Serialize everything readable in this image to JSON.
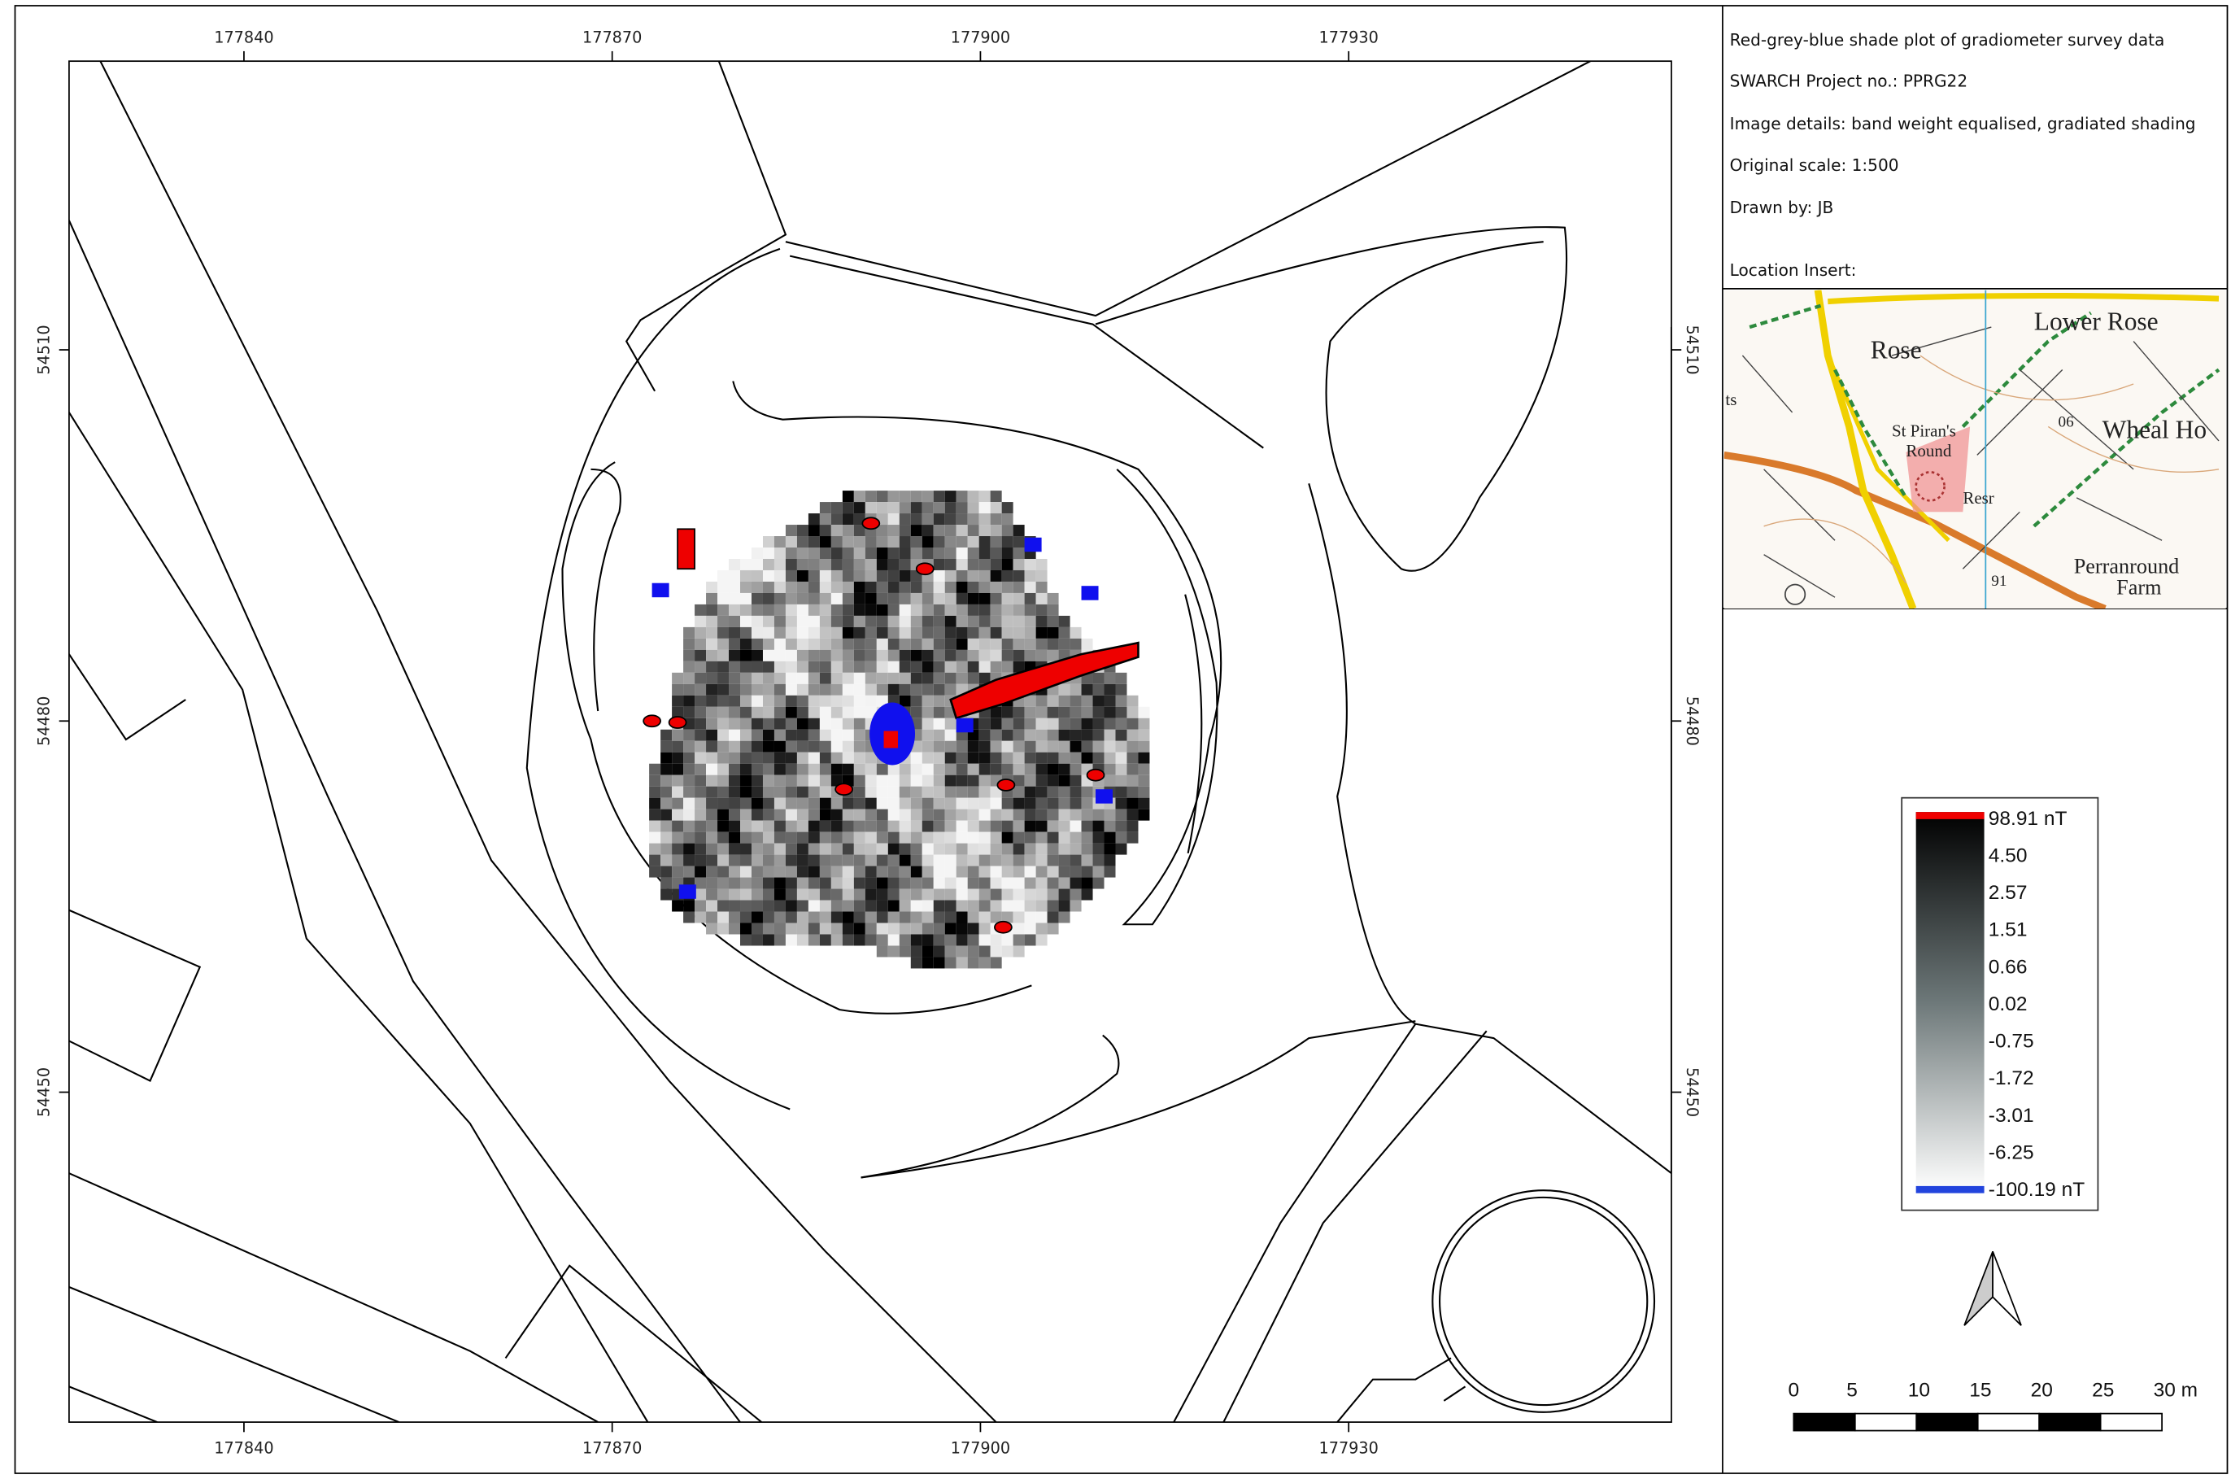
{
  "map": {
    "x_ticks": [
      177840,
      177870,
      177900,
      177930
    ],
    "y_ticks": [
      54510,
      54480,
      54450
    ]
  },
  "info": {
    "title": "Red-grey-blue shade plot of gradiometer survey data",
    "project": "SWARCH Project no.: PPRG22",
    "image_details": "Image details: band weight equalised, gradiated shading",
    "scale": "Original scale: 1:500",
    "drawn_by": "Drawn by: JB",
    "location_insert": "Location Insert:"
  },
  "location_map": {
    "labels": [
      "Lower Rose",
      "Rose",
      "St Piran's",
      "Round",
      "Wheal Ho",
      "Resr",
      "Perranround",
      "Farm",
      "06",
      "91",
      "ts"
    ]
  },
  "legend": {
    "labels": [
      "98.91 nT",
      "4.50",
      "2.57",
      "1.51",
      "0.66",
      "0.02",
      "-0.75",
      "-1.72",
      "-3.01",
      "-6.25",
      "-100.19 nT"
    ]
  },
  "scale_bar": {
    "labels": [
      "0",
      "5",
      "10",
      "15",
      "20",
      "25",
      "30 m"
    ]
  }
}
